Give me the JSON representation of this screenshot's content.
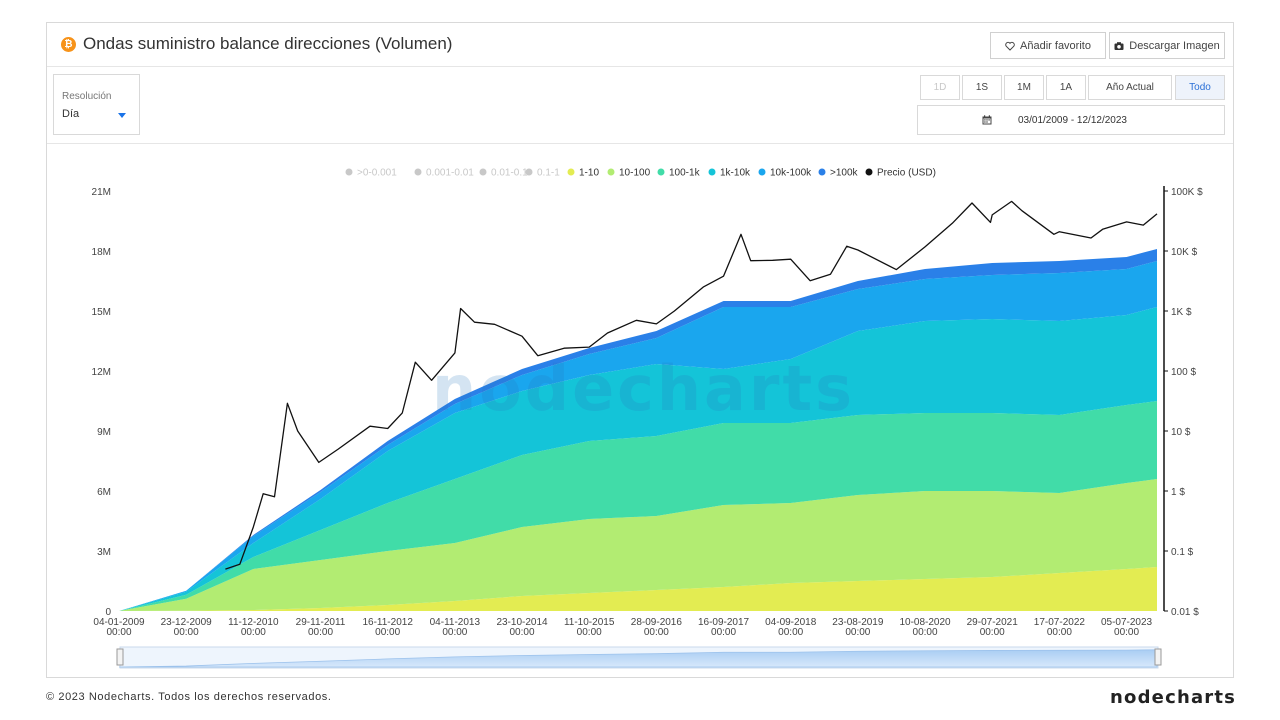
{
  "header": {
    "title": "Ondas suministro balance direcciones (Volumen)",
    "btc_symbol": "₿",
    "favorite_label": "Añadir favorito",
    "download_label": "Descargar Imagen"
  },
  "resolution": {
    "label": "Resolución",
    "value": "Día"
  },
  "ranges": [
    {
      "label": "1D",
      "state": "disabled"
    },
    {
      "label": "1S",
      "state": "normal"
    },
    {
      "label": "1M",
      "state": "normal"
    },
    {
      "label": "1A",
      "state": "normal"
    },
    {
      "label": "Año Actual",
      "state": "normal"
    },
    {
      "label": "Todo",
      "state": "active"
    }
  ],
  "date_range": "03/01/2009 - 12/12/2023",
  "watermark": "nodecharts",
  "footer": {
    "copyright": "© 2023 Nodecharts. Todos los derechos reservados.",
    "logo": "nodecharts"
  },
  "colors": {
    "band_1_10": "#e3ec52",
    "band_10_100": "#b2ec72",
    "band_100_1k": "#41dca8",
    "band_1k_10k": "#14c4d8",
    "band_10k_100k": "#1aa6ee",
    "band_gt_100k": "#2a80e8",
    "price_line": "#111111",
    "legend_disabled": "#c8c8c8"
  },
  "chart_data": {
    "type": "area",
    "stacked": true,
    "legend_position": "top-center",
    "legend": [
      {
        "name": ">0-0.001",
        "enabled": false
      },
      {
        "name": "0.001-0.01",
        "enabled": false
      },
      {
        "name": "0.01-0.1",
        "enabled": false
      },
      {
        "name": "0.1-1",
        "enabled": false
      },
      {
        "name": "1-10",
        "enabled": true
      },
      {
        "name": "10-100",
        "enabled": true
      },
      {
        "name": "100-1k",
        "enabled": true
      },
      {
        "name": "1k-10k",
        "enabled": true
      },
      {
        "name": "10k-100k",
        "enabled": true
      },
      {
        "name": ">100k",
        "enabled": true
      },
      {
        "name": "Precio (USD)",
        "enabled": true
      }
    ],
    "x_dates": [
      "2009-01-04",
      "2009-12-23",
      "2010-12-11",
      "2011-11-29",
      "2012-11-16",
      "2013-11-04",
      "2014-10-23",
      "2015-10-11",
      "2016-09-28",
      "2017-09-16",
      "2018-09-04",
      "2019-08-23",
      "2020-08-10",
      "2021-07-29",
      "2022-07-17",
      "2023-07-05",
      "2023-12-12"
    ],
    "x_tick_labels": [
      [
        "04-01-2009",
        "00:00"
      ],
      [
        "23-12-2009",
        "00:00"
      ],
      [
        "11-12-2010",
        "00:00"
      ],
      [
        "29-11-2011",
        "00:00"
      ],
      [
        "16-11-2012",
        "00:00"
      ],
      [
        "04-11-2013",
        "00:00"
      ],
      [
        "23-10-2014",
        "00:00"
      ],
      [
        "11-10-2015",
        "00:00"
      ],
      [
        "28-09-2016",
        "00:00"
      ],
      [
        "16-09-2017",
        "00:00"
      ],
      [
        "04-09-2018",
        "00:00"
      ],
      [
        "23-08-2019",
        "00:00"
      ],
      [
        "10-08-2020",
        "00:00"
      ],
      [
        "29-07-2021",
        "00:00"
      ],
      [
        "17-07-2022",
        "00:00"
      ],
      [
        "05-07-2023",
        "00:00"
      ]
    ],
    "y_left": {
      "ticks": [
        0,
        3,
        6,
        9,
        12,
        15,
        18,
        21
      ],
      "labels": [
        "0",
        "3M",
        "6M",
        "9M",
        "12M",
        "15M",
        "18M",
        "21M"
      ],
      "unit": "M BTC",
      "ylim": [
        0,
        21
      ]
    },
    "y_right": {
      "scale": "log",
      "ticks": [
        0.01,
        0.1,
        1,
        10,
        100,
        1000,
        10000,
        100000
      ],
      "labels": [
        "0.01 $",
        "0.1 $",
        "1 $",
        "10 $",
        "100 $",
        "1K $",
        "10K $",
        "100K $"
      ]
    },
    "series": [
      {
        "name": "1-10",
        "values": [
          0,
          0.01,
          0.05,
          0.15,
          0.3,
          0.5,
          0.75,
          0.9,
          1.05,
          1.2,
          1.4,
          1.5,
          1.6,
          1.7,
          1.9,
          2.1,
          2.2
        ]
      },
      {
        "name": "10-100",
        "values": [
          0,
          0.6,
          2.05,
          2.4,
          2.7,
          2.9,
          3.45,
          3.7,
          3.7,
          4.1,
          4.0,
          4.3,
          4.4,
          4.3,
          4.0,
          4.3,
          4.4
        ]
      },
      {
        "name": "100-1k",
        "values": [
          0,
          0.2,
          0.6,
          1.5,
          2.4,
          3.2,
          3.6,
          3.9,
          4.0,
          4.1,
          4.0,
          4.0,
          3.9,
          3.9,
          3.9,
          3.9,
          3.9
        ]
      },
      {
        "name": "1k-10k",
        "values": [
          0,
          0.15,
          0.7,
          1.55,
          2.6,
          3.3,
          3.2,
          3.3,
          3.6,
          2.7,
          3.2,
          4.2,
          4.6,
          4.7,
          4.7,
          4.5,
          4.7
        ]
      },
      {
        "name": "10k-100k",
        "values": [
          0,
          0.05,
          0.35,
          0.35,
          0.3,
          0.45,
          0.8,
          1.05,
          1.3,
          3.1,
          2.6,
          2.1,
          2.1,
          2.2,
          2.4,
          2.3,
          2.3
        ]
      },
      {
        "name": ">100k",
        "values": [
          0,
          0,
          0.05,
          0.1,
          0.2,
          0.25,
          0.3,
          0.3,
          0.35,
          0.3,
          0.3,
          0.4,
          0.5,
          0.6,
          0.6,
          0.6,
          0.6
        ]
      }
    ],
    "price": {
      "name": "Precio (USD)",
      "dates": [
        "2010-07-17",
        "2010-10-01",
        "2010-12-11",
        "2011-02-01",
        "2011-04-01",
        "2011-06-08",
        "2011-08-01",
        "2011-11-20",
        "2012-03-01",
        "2012-08-15",
        "2012-11-16",
        "2013-02-01",
        "2013-04-10",
        "2013-07-05",
        "2013-11-04",
        "2013-12-04",
        "2014-02-15",
        "2014-06-01",
        "2014-10-23",
        "2015-01-14",
        "2015-06-01",
        "2015-10-11",
        "2016-01-15",
        "2016-06-15",
        "2016-09-28",
        "2017-01-01",
        "2017-06-01",
        "2017-09-16",
        "2017-12-17",
        "2018-02-06",
        "2018-06-01",
        "2018-09-04",
        "2018-12-15",
        "2019-04-01",
        "2019-06-26",
        "2019-08-23",
        "2020-03-12",
        "2020-08-10",
        "2020-12-31",
        "2021-04-14",
        "2021-07-20",
        "2021-07-29",
        "2021-11-08",
        "2022-01-01",
        "2022-06-18",
        "2022-07-17",
        "2022-12-30",
        "2023-03-01",
        "2023-07-05",
        "2023-10-01",
        "2023-12-12"
      ],
      "values": [
        0.05,
        0.06,
        0.25,
        0.9,
        0.8,
        29,
        10,
        3,
        5,
        12,
        11,
        20,
        140,
        70,
        200,
        1100,
        650,
        600,
        380,
        180,
        240,
        250,
        430,
        700,
        610,
        1000,
        2500,
        3800,
        19000,
        6900,
        7000,
        7300,
        3200,
        4100,
        12000,
        10400,
        4900,
        11700,
        29000,
        63000,
        30000,
        40000,
        67000,
        47000,
        19000,
        21000,
        16500,
        23000,
        30500,
        27000,
        41500
      ]
    }
  }
}
